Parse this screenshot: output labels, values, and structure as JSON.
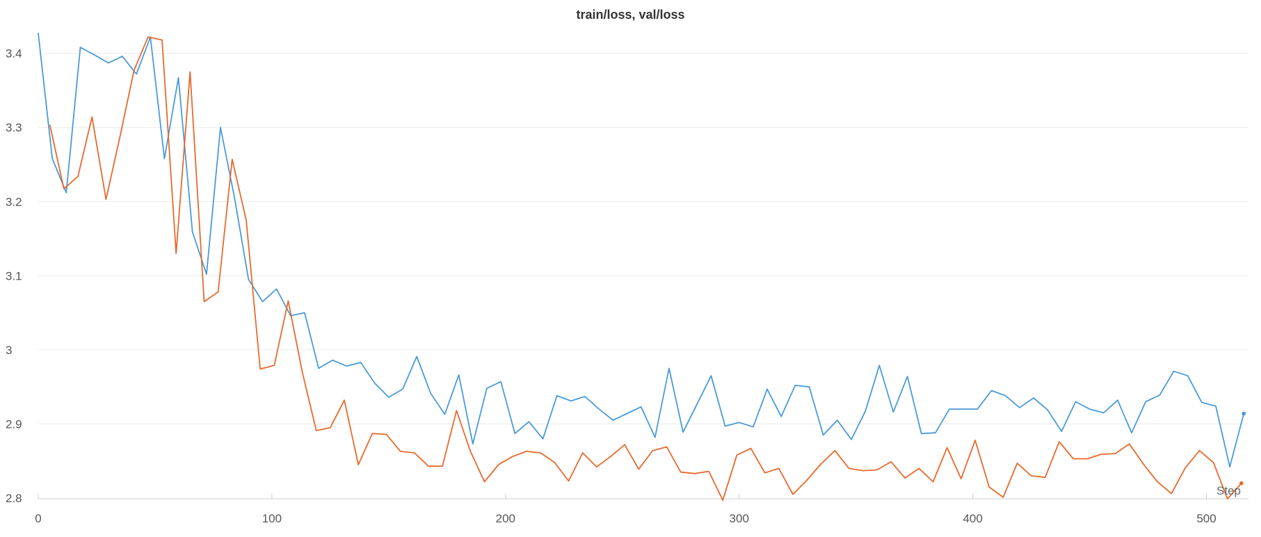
{
  "chart_data": {
    "type": "line",
    "title": "train/loss, val/loss",
    "xlabel": "Step",
    "ylabel": "",
    "xlim": [
      0,
      518
    ],
    "ylim": [
      2.8,
      3.425
    ],
    "xticks": [
      0,
      100,
      200,
      300,
      400,
      500
    ],
    "yticks": [
      2.8,
      2.9,
      3.0,
      3.1,
      3.2,
      3.3,
      3.4
    ],
    "ytick_labels": [
      "2.8",
      "2.9",
      "3",
      "3.1",
      "3.2",
      "3.3",
      "3.4"
    ],
    "grid": true,
    "legend": "none",
    "colors": {
      "series_blue": "#4a9ad8",
      "series_orange": "#e8692c",
      "grid": "#ebebeb",
      "axis": "#cccccc"
    },
    "series": [
      {
        "color": "#4a9ad8",
        "x": [
          0,
          6,
          12,
          18,
          24,
          30,
          36,
          42,
          48,
          54,
          60,
          66,
          72,
          78,
          84,
          90,
          96,
          102,
          108,
          114,
          120,
          126,
          132,
          138,
          144,
          150,
          156,
          162,
          168,
          174,
          180,
          186,
          192,
          198,
          204,
          210,
          216,
          222,
          228,
          234,
          240,
          246,
          252,
          258,
          264,
          270,
          276,
          282,
          288,
          294,
          300,
          306,
          312,
          318,
          324,
          330,
          336,
          342,
          348,
          354,
          360,
          366,
          372,
          378,
          384,
          390,
          396,
          402,
          408,
          414,
          420,
          426,
          432,
          438,
          444,
          450,
          456,
          462,
          468,
          474,
          480,
          486,
          492,
          498,
          504,
          510,
          516
        ],
        "values": [
          3.427,
          3.258,
          3.212,
          3.408,
          3.398,
          3.387,
          3.396,
          3.372,
          3.422,
          3.258,
          3.367,
          3.159,
          3.102,
          3.3,
          3.205,
          3.095,
          3.065,
          3.082,
          3.046,
          3.05,
          2.975,
          2.986,
          2.978,
          2.983,
          2.955,
          2.936,
          2.947,
          2.991,
          2.941,
          2.913,
          2.966,
          2.873,
          2.948,
          2.957,
          2.887,
          2.903,
          2.88,
          2.938,
          2.931,
          2.937,
          2.92,
          2.905,
          2.914,
          2.923,
          2.882,
          2.975,
          2.889,
          2.927,
          2.965,
          2.897,
          2.902,
          2.896,
          2.947,
          2.91,
          2.952,
          2.95,
          2.885,
          2.905,
          2.879,
          2.917,
          2.979,
          2.916,
          2.964,
          2.887,
          2.888,
          2.92,
          2.92,
          2.92,
          2.945,
          2.938,
          2.922,
          2.935,
          2.919,
          2.89,
          2.93,
          2.92,
          2.915,
          2.932,
          2.888,
          2.93,
          2.939,
          2.971,
          2.965,
          2.929,
          2.924,
          2.842,
          2.914
        ]
      },
      {
        "color": "#e8692c",
        "x": [
          5,
          11,
          17,
          23,
          29,
          35,
          41,
          47,
          53,
          59,
          65,
          71,
          77,
          83,
          89,
          95,
          101,
          107,
          113,
          119,
          125,
          131,
          137,
          143,
          149,
          155,
          161,
          167,
          173,
          179,
          185,
          191,
          197,
          203,
          209,
          215,
          221,
          227,
          233,
          239,
          245,
          251,
          257,
          263,
          269,
          275,
          281,
          287,
          293,
          299,
          305,
          311,
          317,
          323,
          329,
          335,
          341,
          347,
          353,
          359,
          365,
          371,
          377,
          383,
          389,
          395,
          401,
          407,
          413,
          419,
          425,
          431,
          437,
          443,
          449,
          455,
          461,
          467,
          473,
          479,
          485,
          491,
          497,
          503,
          509,
          515
        ],
        "values": [
          3.303,
          3.217,
          3.234,
          3.314,
          3.203,
          3.288,
          3.377,
          3.422,
          3.418,
          3.13,
          3.375,
          3.065,
          3.078,
          3.257,
          3.175,
          2.974,
          2.979,
          3.066,
          2.97,
          2.891,
          2.895,
          2.932,
          2.845,
          2.887,
          2.886,
          2.863,
          2.861,
          2.843,
          2.843,
          2.918,
          2.863,
          2.822,
          2.845,
          2.856,
          2.863,
          2.861,
          2.848,
          2.823,
          2.861,
          2.842,
          2.856,
          2.872,
          2.839,
          2.864,
          2.869,
          2.835,
          2.833,
          2.836,
          2.797,
          2.858,
          2.867,
          2.834,
          2.84,
          2.805,
          2.824,
          2.846,
          2.864,
          2.84,
          2.837,
          2.838,
          2.849,
          2.827,
          2.84,
          2.822,
          2.868,
          2.826,
          2.878,
          2.815,
          2.801,
          2.847,
          2.83,
          2.828,
          2.876,
          2.853,
          2.853,
          2.859,
          2.86,
          2.873,
          2.846,
          2.822,
          2.806,
          2.841,
          2.864,
          2.848,
          2.799,
          2.82
        ]
      }
    ]
  }
}
